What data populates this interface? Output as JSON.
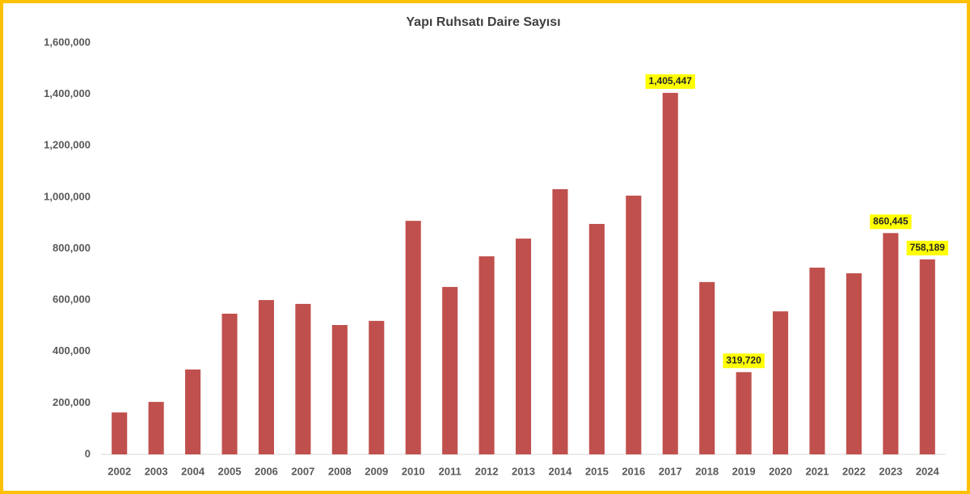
{
  "chart_data": {
    "type": "bar",
    "title": "Yapı Ruhsatı Daire Sayısı",
    "categories": [
      "2002",
      "2003",
      "2004",
      "2005",
      "2006",
      "2007",
      "2008",
      "2009",
      "2010",
      "2011",
      "2012",
      "2013",
      "2014",
      "2015",
      "2016",
      "2017",
      "2018",
      "2019",
      "2020",
      "2021",
      "2022",
      "2023",
      "2024"
    ],
    "values": [
      163000,
      204000,
      330000,
      547000,
      600000,
      585000,
      503000,
      519000,
      908000,
      651000,
      770000,
      839000,
      1031000,
      896000,
      1006000,
      1405447,
      670000,
      319720,
      556000,
      726000,
      704000,
      860445,
      758189
    ],
    "value_labels": [
      null,
      null,
      null,
      null,
      null,
      null,
      null,
      null,
      null,
      null,
      null,
      null,
      null,
      null,
      null,
      "1,405,447",
      null,
      "319,720",
      null,
      null,
      null,
      "860,445",
      "758,189"
    ],
    "color": "#c0504d",
    "ylim": [
      0,
      1600000
    ],
    "yticks": [
      0,
      {
        "value": 200000,
        "label": "200,000"
      },
      {
        "value": 400000,
        "label": "400,000"
      },
      {
        "value": 600000,
        "label": "600,000"
      },
      {
        "value": 800000,
        "label": "800,000"
      },
      {
        "value": 1000000,
        "label": "1,000,000"
      },
      {
        "value": 1200000,
        "label": "1,200,000"
      },
      {
        "value": 1400000,
        "label": "1,400,000"
      },
      {
        "value": 1600000,
        "label": "1,600,000"
      }
    ],
    "grid": false
  }
}
